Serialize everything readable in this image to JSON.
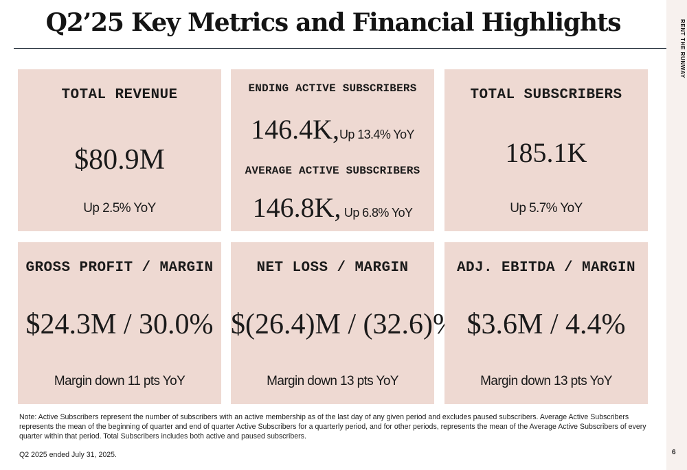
{
  "page": {
    "title": "Q2’25 Key Metrics and Financial Highlights",
    "brand": "RENT THE RUNWAY",
    "page_number": "6"
  },
  "cards": {
    "total_revenue": {
      "heading": "TOTAL REVENUE",
      "value": "$80.9M",
      "sub": "Up 2.5% YoY"
    },
    "subscribers": {
      "ending_heading": "ENDING ACTIVE SUBSCRIBERS",
      "ending_value": "146.4K,",
      "ending_sub": "Up 13.4% YoY",
      "average_heading": "AVERAGE ACTIVE SUBSCRIBERS",
      "average_value": "146.8K,",
      "average_sub": "Up 6.8% YoY"
    },
    "total_subscribers": {
      "heading": "TOTAL SUBSCRIBERS",
      "value": "185.1K",
      "sub": "Up 5.7% YoY"
    },
    "gross_profit": {
      "heading": "GROSS PROFIT / MARGIN",
      "value": "$24.3M / 30.0%",
      "sub": "Margin down 11 pts YoY"
    },
    "net_loss": {
      "heading": "NET LOSS / MARGIN",
      "value": "$(26.4)M / (32.6)%",
      "sub": "Margin down 13 pts YoY"
    },
    "adj_ebitda": {
      "heading": "ADJ. EBITDA / MARGIN",
      "value": "$3.6M / 4.4%",
      "sub": "Margin down 13 pts YoY"
    }
  },
  "notes": {
    "definition": "Note: Active Subscribers represent the number of subscribers with an active membership as of the last day of any given period and excludes paused subscribers. Average Active Subscribers represents the mean of the beginning of quarter and end of quarter Active Subscribers for a quarterly period,  and for other periods, represents the mean of the Average Active Subscribers of every quarter within that period.  Total Subscribers includes both active and paused subscribers.",
    "quarter_end": "Q2 2025 ended July 31, 2025."
  },
  "colors": {
    "card_background": "#eed9d2",
    "rule": "#1f2a36",
    "side_band": "#f7f1ee"
  }
}
